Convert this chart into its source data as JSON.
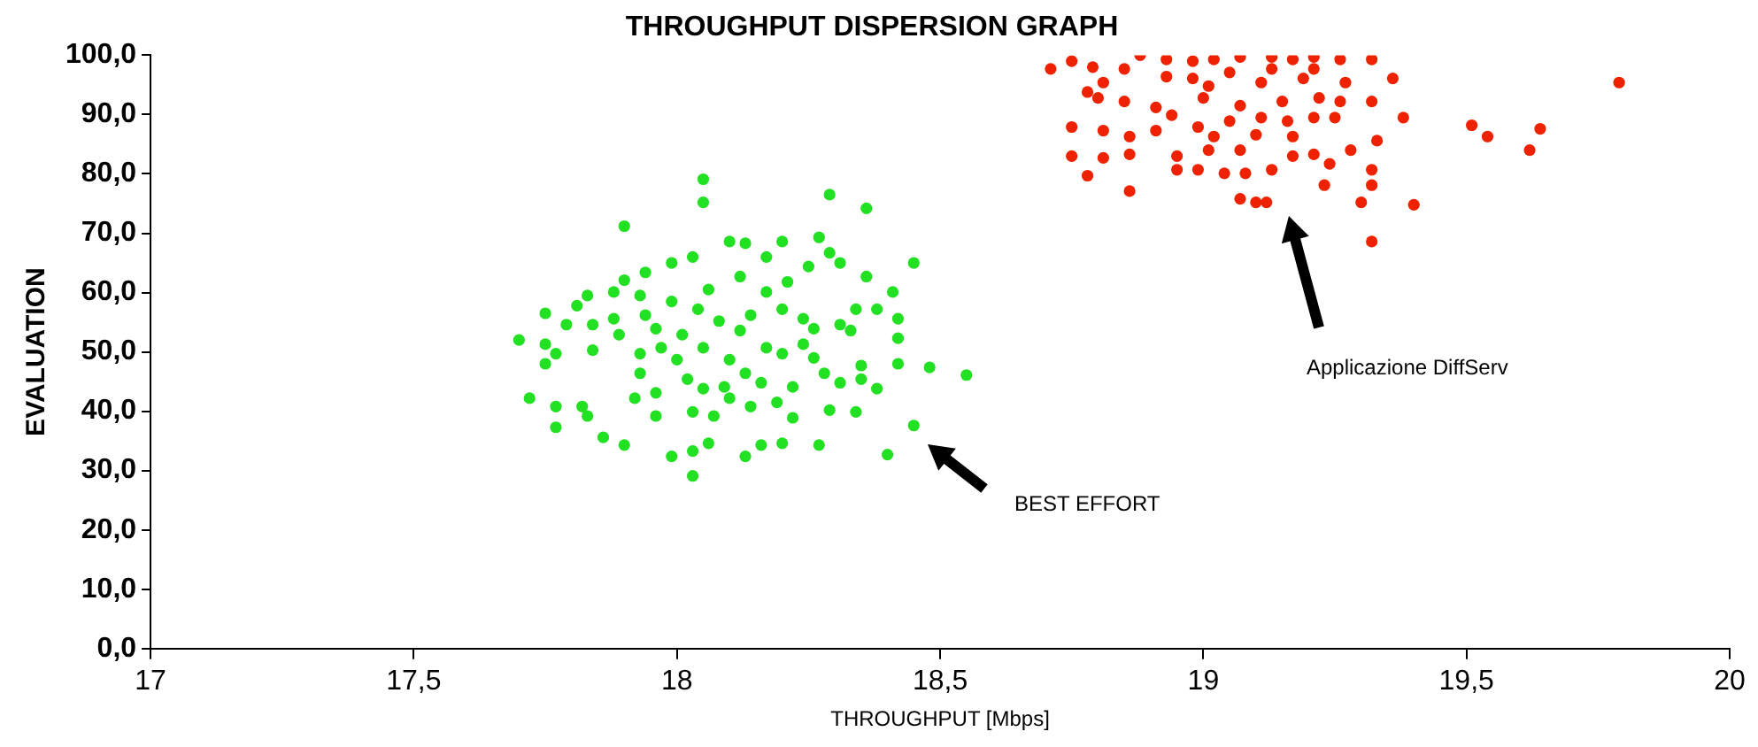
{
  "chart_data": {
    "type": "scatter",
    "title": "THROUGHPUT DISPERSION GRAPH",
    "xlabel": "THROUGHPUT [Mbps]",
    "ylabel": "EVALUATION",
    "xlim": [
      17,
      20
    ],
    "xticks": [
      17,
      {
        "value": 17.5,
        "label": "17,5"
      },
      18,
      {
        "value": 18.5,
        "label": "18,5"
      },
      19,
      {
        "value": 19.5,
        "label": "19,5"
      },
      20
    ],
    "ylim": [
      0,
      100
    ],
    "yticks": [
      {
        "value": 0,
        "label": "0,0"
      },
      {
        "value": 10,
        "label": "10,0"
      },
      {
        "value": 20,
        "label": "20,0"
      },
      {
        "value": 30,
        "label": "30,0"
      },
      {
        "value": 40,
        "label": "40,0"
      },
      {
        "value": 50,
        "label": "50,0"
      },
      {
        "value": 60,
        "label": "60,0"
      },
      {
        "value": 70,
        "label": "70,0"
      },
      {
        "value": 80,
        "label": "80,0"
      },
      {
        "value": 90,
        "label": "90,0"
      },
      {
        "value": 100,
        "label": "100,0"
      }
    ],
    "grid": false,
    "legend": false,
    "marker": "circle",
    "annotations": [
      "BEST EFFORT",
      "Applicazione DiffServ"
    ],
    "series": [
      {
        "color": "#22e022",
        "x": [
          18.05,
          18.05,
          18.29,
          18.36,
          17.9,
          18.45,
          17.7,
          17.75,
          18.48,
          18.55,
          17.72,
          17.77,
          17.77,
          17.86,
          17.9,
          17.99,
          18.03,
          18.03,
          18.06,
          18.13,
          18.16,
          18.2,
          18.27,
          18.4,
          18.45,
          18.34,
          18.29,
          18.22,
          18.38,
          18.35,
          18.35,
          18.42,
          18.42,
          18.42,
          18.41,
          18.36,
          18.38,
          18.31,
          18.29,
          18.27,
          18.2,
          18.17,
          18.13,
          18.1,
          18.03,
          17.99,
          17.94,
          17.9,
          17.88,
          17.83,
          17.81,
          17.79,
          17.75,
          17.77,
          17.75,
          17.82,
          17.83,
          17.92,
          17.96,
          17.96,
          18.03,
          18.07,
          18.1,
          18.14,
          18.19,
          18.13,
          18.02,
          18.05,
          17.93,
          17.93,
          17.89,
          17.88,
          17.96,
          18.01,
          18.0,
          18.05,
          18.08,
          18.04,
          18.06,
          18.12,
          18.17,
          18.2,
          18.14,
          18.12,
          18.17,
          18.2,
          18.24,
          18.26,
          18.28,
          18.31,
          18.26,
          18.24,
          18.31,
          18.33,
          18.34,
          18.21,
          18.25,
          17.97,
          17.94,
          17.99,
          17.84,
          17.84,
          17.93,
          18.1,
          18.09,
          18.22,
          18.16
        ],
        "values": [
          79.1,
          75.2,
          76.5,
          74.2,
          71.2,
          65.0,
          52.0,
          56.5,
          47.4,
          46.1,
          42.2,
          40.8,
          37.3,
          35.6,
          34.3,
          32.4,
          29.1,
          33.3,
          34.6,
          32.4,
          34.3,
          34.6,
          34.3,
          32.7,
          37.6,
          39.9,
          40.2,
          38.9,
          43.8,
          45.4,
          47.7,
          48.0,
          52.3,
          55.6,
          60.1,
          62.7,
          57.2,
          65.0,
          66.7,
          69.3,
          68.6,
          66.0,
          68.3,
          68.6,
          66.0,
          65.0,
          63.4,
          62.1,
          60.1,
          59.5,
          57.8,
          54.6,
          51.3,
          49.7,
          48.0,
          40.8,
          39.2,
          42.2,
          39.2,
          43.1,
          39.9,
          39.2,
          42.2,
          40.8,
          41.5,
          46.4,
          45.4,
          43.8,
          46.4,
          49.7,
          52.9,
          55.6,
          53.9,
          52.9,
          48.7,
          50.7,
          55.2,
          57.2,
          60.5,
          62.7,
          60.1,
          57.2,
          56.2,
          53.6,
          50.7,
          49.7,
          51.3,
          49.0,
          46.4,
          44.8,
          53.9,
          55.6,
          54.6,
          53.6,
          57.2,
          61.8,
          64.4,
          50.7,
          56.2,
          58.5,
          54.6,
          50.3,
          59.5,
          48.7,
          44.1,
          44.1,
          44.8
        ]
      },
      {
        "color": "#ee2200",
        "x": [
          18.71,
          18.75,
          18.79,
          18.88,
          18.93,
          18.98,
          19.02,
          19.07,
          19.13,
          19.17,
          19.21,
          19.26,
          19.32,
          18.81,
          18.78,
          18.8,
          18.93,
          19.01,
          19.11,
          19.19,
          19.27,
          19.36,
          18.85,
          18.91,
          19.0,
          19.07,
          19.15,
          19.22,
          19.32,
          19.38,
          18.75,
          18.81,
          18.86,
          18.91,
          18.94,
          18.99,
          19.05,
          19.11,
          19.16,
          19.21,
          19.25,
          19.1,
          19.17,
          19.02,
          19.51,
          19.54,
          19.64,
          19.62,
          19.79,
          18.75,
          18.81,
          18.86,
          18.78,
          18.86,
          18.95,
          18.95,
          18.99,
          19.01,
          19.07,
          19.04,
          19.08,
          19.13,
          19.17,
          19.21,
          19.24,
          19.23,
          19.28,
          19.33,
          19.32,
          19.32,
          19.3,
          19.4,
          19.32,
          19.07,
          19.1,
          19.12,
          19.26,
          19.05,
          18.98,
          19.13,
          19.21,
          18.85
        ],
        "values": [
          97.7,
          99.0,
          98.0,
          100.0,
          99.3,
          99.0,
          99.3,
          99.7,
          99.7,
          99.3,
          99.7,
          99.3,
          99.3,
          95.4,
          93.8,
          92.8,
          96.4,
          94.8,
          95.4,
          96.1,
          95.4,
          96.1,
          92.2,
          91.2,
          92.8,
          91.5,
          92.2,
          92.8,
          92.2,
          89.5,
          87.9,
          87.3,
          86.3,
          87.3,
          89.9,
          87.9,
          88.9,
          89.5,
          88.9,
          89.5,
          89.5,
          86.6,
          86.3,
          86.3,
          88.2,
          86.3,
          87.6,
          84.0,
          95.4,
          83.0,
          82.7,
          83.3,
          79.7,
          77.1,
          83.0,
          80.7,
          80.7,
          84.0,
          84.0,
          80.1,
          80.1,
          80.7,
          83.0,
          83.3,
          81.7,
          78.1,
          84.0,
          85.6,
          80.7,
          78.1,
          75.2,
          74.8,
          68.6,
          75.8,
          75.2,
          75.2,
          92.2,
          97.1,
          96.1,
          97.7,
          97.7,
          97.7
        ]
      }
    ]
  }
}
